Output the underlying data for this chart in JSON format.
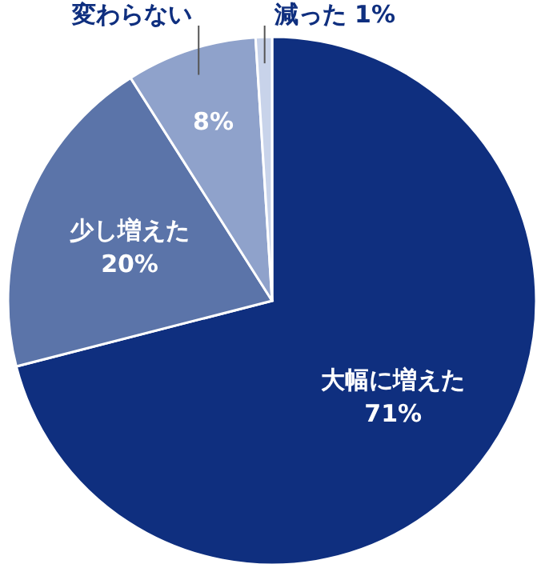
{
  "chart_data": {
    "type": "pie",
    "categories": [
      "大幅に増えた",
      "少し増えた",
      "変わらない",
      "減った"
    ],
    "values": [
      71,
      20,
      8,
      1
    ],
    "colors": [
      "#0f2f7f",
      "#5b74a9",
      "#8fa2cb",
      "#c8d3ea"
    ],
    "value_labels": [
      "71%",
      "20%",
      "8%",
      "1%"
    ]
  }
}
